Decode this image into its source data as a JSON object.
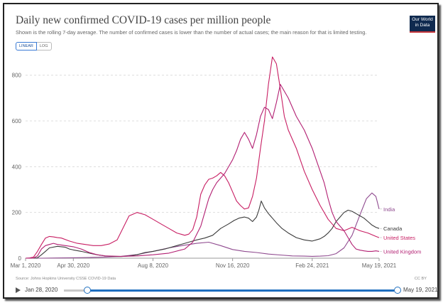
{
  "header": {
    "title": "Daily new confirmed COVID-19 cases per million people",
    "subtitle": "Shown is the rolling 7-day average. The number of confirmed cases is lower than the number of actual cases; the main reason for that is limited testing.",
    "logo_line1": "Our World",
    "logo_line2": "in Data"
  },
  "controls": {
    "linear_label": "LINEAR",
    "log_label": "LOG"
  },
  "footer": {
    "source": "Source: Johns Hopkins University CSSE COVID-19 Data",
    "license": "CC BY",
    "timeline_start": "Jan 28, 2020",
    "timeline_end": "May 19, 2021",
    "range_start_fraction": 0.07,
    "range_end_fraction": 1.0
  },
  "chart_data": {
    "type": "line",
    "title": "Daily new confirmed COVID-19 cases per million people",
    "xlabel": "",
    "ylabel": "",
    "x_unit": "days since Mar 1, 2020",
    "xlim": [
      0,
      444
    ],
    "ylim": [
      0,
      880
    ],
    "y_ticks": [
      0,
      200,
      400,
      600,
      800
    ],
    "x_ticks": [
      {
        "label": "Mar 1, 2020",
        "value": 0
      },
      {
        "label": "Apr 30, 2020",
        "value": 60
      },
      {
        "label": "Aug 8, 2020",
        "value": 160
      },
      {
        "label": "Nov 16, 2020",
        "value": 260
      },
      {
        "label": "Feb 24, 2021",
        "value": 360
      },
      {
        "label": "May 19, 2021",
        "value": 444
      }
    ],
    "grid": true,
    "series": [
      {
        "name": "India",
        "color": "#8f4a8f",
        "x": [
          0,
          20,
          40,
          60,
          80,
          100,
          120,
          140,
          160,
          180,
          200,
          215,
          230,
          245,
          260,
          275,
          290,
          305,
          320,
          335,
          350,
          360,
          370,
          380,
          390,
          400,
          410,
          420,
          428,
          435,
          440,
          444
        ],
        "y": [
          0,
          0,
          1,
          2,
          3,
          5,
          8,
          16,
          30,
          45,
          57,
          65,
          70,
          55,
          38,
          30,
          25,
          18,
          14,
          10,
          9,
          8,
          9,
          11,
          20,
          45,
          100,
          190,
          260,
          285,
          270,
          215
        ]
      },
      {
        "name": "Canada",
        "color": "#3b3b3b",
        "x": [
          0,
          10,
          15,
          20,
          25,
          30,
          40,
          50,
          55,
          60,
          70,
          80,
          90,
          100,
          110,
          120,
          130,
          140,
          150,
          160,
          175,
          190,
          200,
          210,
          215,
          225,
          235,
          245,
          255,
          262,
          268,
          275,
          280,
          285,
          290,
          293,
          296,
          300,
          305,
          310,
          315,
          322,
          330,
          340,
          350,
          360,
          365,
          370,
          375,
          380,
          385,
          390,
          395,
          400,
          405,
          410,
          415,
          420,
          425,
          430,
          435,
          440,
          444
        ],
        "y": [
          0,
          0,
          2,
          15,
          30,
          45,
          52,
          48,
          40,
          36,
          30,
          22,
          15,
          10,
          8,
          7,
          10,
          15,
          25,
          30,
          40,
          55,
          65,
          75,
          80,
          88,
          100,
          130,
          150,
          165,
          175,
          180,
          175,
          160,
          180,
          210,
          250,
          220,
          195,
          175,
          155,
          130,
          110,
          90,
          80,
          75,
          80,
          85,
          95,
          110,
          130,
          160,
          180,
          200,
          210,
          205,
          195,
          185,
          175,
          160,
          145,
          135,
          130
        ]
      },
      {
        "name": "United States",
        "color": "#c81e63",
        "x": [
          0,
          5,
          10,
          15,
          20,
          25,
          30,
          35,
          40,
          45,
          55,
          65,
          75,
          85,
          95,
          105,
          115,
          125,
          130,
          140,
          150,
          160,
          170,
          180,
          190,
          200,
          205,
          210,
          215,
          220,
          225,
          230,
          235,
          240,
          245,
          250,
          255,
          260,
          265,
          270,
          275,
          280,
          285,
          290,
          295,
          300,
          305,
          310,
          315,
          320,
          325,
          330,
          340,
          350,
          360,
          370,
          380,
          390,
          400,
          410,
          420,
          430,
          440,
          444
        ],
        "y": [
          0,
          1,
          5,
          30,
          60,
          88,
          95,
          93,
          90,
          88,
          75,
          65,
          60,
          55,
          55,
          62,
          80,
          150,
          185,
          200,
          190,
          170,
          150,
          130,
          110,
          100,
          105,
          125,
          180,
          280,
          320,
          345,
          350,
          360,
          375,
          360,
          330,
          290,
          250,
          230,
          215,
          220,
          270,
          350,
          480,
          600,
          760,
          880,
          850,
          740,
          620,
          560,
          480,
          380,
          300,
          230,
          170,
          130,
          120,
          135,
          120,
          110,
          95,
          90
        ]
      },
      {
        "name": "United Kingdom",
        "color": "#b21f72",
        "x": [
          0,
          10,
          15,
          20,
          25,
          30,
          35,
          40,
          50,
          60,
          70,
          80,
          90,
          100,
          120,
          140,
          160,
          180,
          200,
          210,
          220,
          225,
          230,
          235,
          240,
          245,
          250,
          255,
          260,
          265,
          270,
          275,
          280,
          285,
          290,
          295,
          300,
          305,
          310,
          315,
          320,
          330,
          340,
          350,
          360,
          370,
          375,
          380,
          385,
          390,
          395,
          400,
          405,
          410,
          415,
          420,
          425,
          430,
          435,
          440,
          444
        ],
        "y": [
          0,
          1,
          10,
          40,
          55,
          60,
          65,
          60,
          55,
          50,
          40,
          25,
          15,
          10,
          8,
          10,
          15,
          22,
          40,
          70,
          140,
          200,
          260,
          300,
          330,
          350,
          370,
          400,
          430,
          470,
          520,
          550,
          520,
          480,
          540,
          620,
          660,
          650,
          610,
          680,
          760,
          700,
          620,
          560,
          480,
          380,
          330,
          260,
          200,
          160,
          140,
          120,
          90,
          60,
          40,
          35,
          32,
          30,
          30,
          32,
          30
        ]
      }
    ],
    "legend_position": "right-end-labels"
  }
}
